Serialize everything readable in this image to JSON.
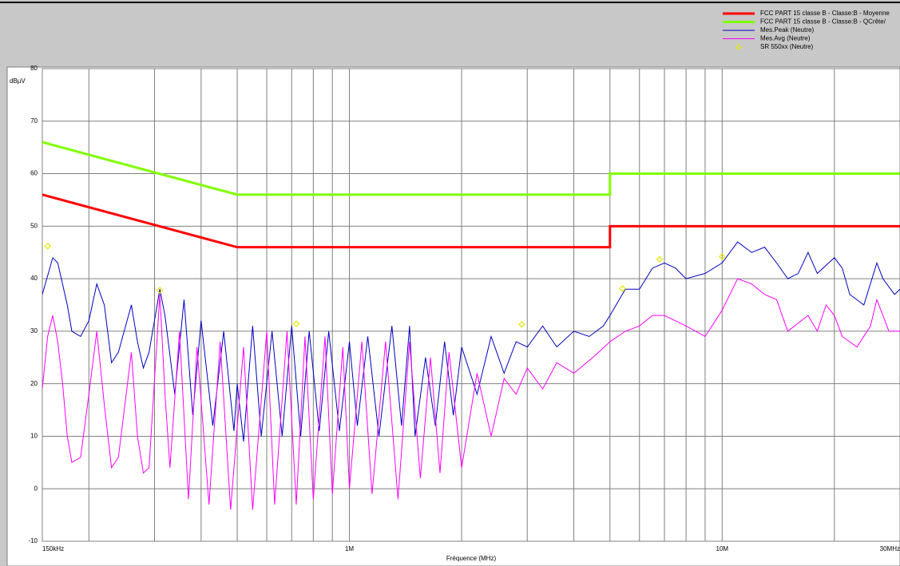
{
  "chart_data": {
    "type": "line",
    "xlabel": "Fréquence (MHz)",
    "ylabel": "dBµV",
    "xscale": "log",
    "grid": true,
    "legend": "top-right",
    "xlim": [
      0.15,
      30
    ],
    "ylim": [
      -10,
      80
    ],
    "yticks": [
      80,
      70,
      60,
      50,
      40,
      30,
      20,
      10,
      0,
      -10
    ],
    "xticks": [
      {
        "value": 0.15,
        "label": "150kHz"
      },
      {
        "value": 1,
        "label": "1M"
      },
      {
        "value": 10,
        "label": "10M"
      },
      {
        "value": 30,
        "label": "30MHz"
      }
    ],
    "x_minor_ticks": [
      0.2,
      0.3,
      0.4,
      0.5,
      0.6,
      0.7,
      0.8,
      0.9,
      2,
      3,
      4,
      5,
      6,
      7,
      8,
      9,
      20
    ],
    "series": [
      {
        "name": "FCC PART 15 classe B - Classe:B - Moyenne",
        "color": "#ff0000",
        "width": 3,
        "x": [
          0.15,
          0.5,
          5,
          5,
          30
        ],
        "values": [
          56,
          46,
          46,
          50,
          50
        ]
      },
      {
        "name": "FCC PART 15 classe B - Classe:B - QCrête/",
        "color": "#80ff00",
        "width": 3,
        "x": [
          0.15,
          0.5,
          5,
          5,
          30
        ],
        "values": [
          66,
          56,
          56,
          60,
          60
        ]
      },
      {
        "name": "Mes.Peak (Neutre)",
        "color": "#0000c0",
        "width": 1,
        "x": [
          0.15,
          0.16,
          0.165,
          0.175,
          0.18,
          0.19,
          0.2,
          0.21,
          0.22,
          0.23,
          0.24,
          0.26,
          0.27,
          0.28,
          0.29,
          0.31,
          0.32,
          0.34,
          0.36,
          0.38,
          0.4,
          0.43,
          0.46,
          0.49,
          0.5,
          0.52,
          0.55,
          0.58,
          0.62,
          0.66,
          0.7,
          0.74,
          0.78,
          0.83,
          0.88,
          0.94,
          1.0,
          1.05,
          1.12,
          1.2,
          1.3,
          1.38,
          1.45,
          1.5,
          1.6,
          1.7,
          1.8,
          1.9,
          2.0,
          2.2,
          2.4,
          2.6,
          2.8,
          3.0,
          3.3,
          3.6,
          4.0,
          4.4,
          4.8,
          5.0,
          5.5,
          6.0,
          6.5,
          7.0,
          7.5,
          8.0,
          9.0,
          10,
          11,
          12,
          13,
          14,
          15,
          16,
          17,
          18,
          20,
          21,
          22,
          24,
          26,
          27,
          29,
          30
        ],
        "values": [
          37,
          44,
          43,
          35,
          30,
          29,
          32,
          39,
          35,
          24,
          26,
          35,
          28,
          23,
          26,
          38,
          33,
          18,
          36,
          14,
          32,
          12,
          30,
          11,
          20,
          9,
          31,
          10,
          30,
          10,
          31,
          10,
          30,
          11,
          30,
          11,
          28,
          12,
          29,
          10,
          31,
          12,
          31,
          10,
          25,
          12,
          28,
          14,
          27,
          18,
          29,
          22,
          28,
          27,
          31,
          27,
          30,
          29,
          31,
          33,
          38,
          38,
          42,
          43,
          42,
          40,
          41,
          43,
          47,
          45,
          46,
          43,
          40,
          41,
          45,
          41,
          44,
          42,
          37,
          35,
          43,
          40,
          37,
          38
        ]
      },
      {
        "name": "Mes.Avg (Neutre)",
        "color": "#ff00ff",
        "width": 1,
        "x": [
          0.15,
          0.155,
          0.16,
          0.165,
          0.17,
          0.175,
          0.18,
          0.19,
          0.2,
          0.21,
          0.22,
          0.23,
          0.24,
          0.26,
          0.27,
          0.28,
          0.29,
          0.31,
          0.32,
          0.33,
          0.35,
          0.37,
          0.39,
          0.42,
          0.45,
          0.48,
          0.52,
          0.55,
          0.6,
          0.63,
          0.68,
          0.72,
          0.76,
          0.8,
          0.86,
          0.9,
          0.96,
          1.0,
          1.08,
          1.15,
          1.25,
          1.35,
          1.45,
          1.55,
          1.65,
          1.75,
          1.85,
          2.0,
          2.2,
          2.4,
          2.6,
          2.8,
          3.0,
          3.3,
          3.6,
          4.0,
          4.5,
          5.0,
          5.5,
          6.0,
          6.5,
          7.0,
          8.0,
          9.0,
          10,
          11,
          12,
          13,
          14,
          15,
          17,
          18,
          19,
          20,
          21,
          23,
          25,
          26,
          27,
          28,
          30
        ],
        "values": [
          19,
          29,
          33,
          28,
          20,
          10,
          5,
          6,
          18,
          30,
          16,
          4,
          6,
          26,
          10,
          3,
          4,
          37,
          18,
          4,
          30,
          -2,
          27,
          -3,
          28,
          -4,
          27,
          -4,
          30,
          -3,
          30,
          -3,
          29,
          -2,
          29,
          -1,
          27,
          0,
          28,
          -1,
          28,
          -2,
          28,
          2,
          25,
          3,
          26,
          4,
          22,
          10,
          21,
          18,
          23,
          19,
          24,
          22,
          25,
          28,
          30,
          31,
          33,
          33,
          31,
          29,
          34,
          40,
          39,
          37,
          36,
          30,
          33,
          30,
          35,
          33,
          29,
          27,
          31,
          36,
          33,
          30,
          30
        ]
      },
      {
        "name": "SR 550xx (Neutre)",
        "color": "#e8e800",
        "style": "markers",
        "x": [
          0.155,
          0.31,
          0.72,
          2.9,
          5.4,
          6.8,
          10
        ],
        "values": [
          46.2,
          37.8,
          31.4,
          31.3,
          38.1,
          43.7,
          44.2
        ]
      }
    ]
  }
}
